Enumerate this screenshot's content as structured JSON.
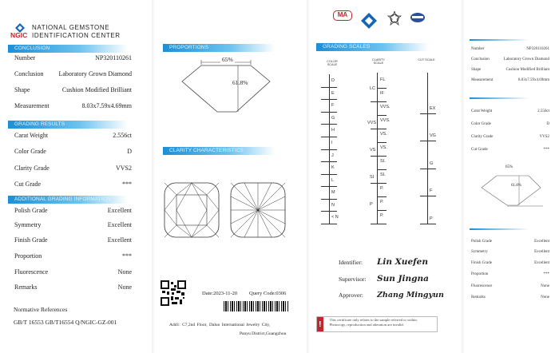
{
  "header": {
    "org_line1": "NATIONAL GEMSTONE",
    "org_line2": "IDENTIFICATION CENTER",
    "logo_text": "NGIC",
    "brand_color": "#1c8fd6",
    "logo_red": "#c0262d"
  },
  "conclusion": {
    "title": "CONCLUSION",
    "rows": [
      {
        "label": "Number",
        "value": "NP320110261"
      },
      {
        "label": "Conclusion",
        "value": "Laboratory Grown Diamond"
      },
      {
        "label": "Shape",
        "value": "Cushion Modified Brilliant"
      },
      {
        "label": "Measurement",
        "value": "8.03x7.59x4.69mm"
      }
    ]
  },
  "grading": {
    "title": "GRADING RESULTS",
    "rows": [
      {
        "label": "Carat Weight",
        "value": "2.556ct"
      },
      {
        "label": "Color Grade",
        "value": "D"
      },
      {
        "label": "Clarity Grade",
        "value": "VVS2"
      },
      {
        "label": "Cut Grade",
        "value": "***"
      }
    ]
  },
  "additional": {
    "title": "ADDITIONAL GRADING INFORMATION",
    "rows": [
      {
        "label": "Polish Grade",
        "value": "Excellent"
      },
      {
        "label": "Symmetry",
        "value": "Excellent"
      },
      {
        "label": "Finish Grade",
        "value": "Excellent"
      },
      {
        "label": "Proportion",
        "value": "***"
      },
      {
        "label": "Fluorescence",
        "value": "None"
      },
      {
        "label": "Remarks",
        "value": "None"
      }
    ]
  },
  "references": {
    "title": "Normative References",
    "value": "GB/T 16553  GB/T16554  Q/NGIC-GZ-001"
  },
  "proportions": {
    "title": "PROPORTIONS",
    "table": "65%",
    "depth": "61.8%"
  },
  "clarity_characteristics": {
    "title": "CLARITY CHARACTERISTICS"
  },
  "footer": {
    "date": "Date:2023-11-20",
    "query_code": "Query Code:0306",
    "address_line1": "Add1:  C7,2nd Floor,  Daluo International Jewelry City,",
    "address_line2": "Panyu District,Guangzhou"
  },
  "scales": {
    "title": "GRADING SCALES",
    "color_title": "COLOR SCALE",
    "clarity_title": "CLARITY SCALE",
    "cut_title": "CUT SCALE",
    "color": [
      "D",
      "E",
      "F",
      "G",
      "H",
      "I",
      "J",
      "K",
      "L",
      "M",
      "N",
      "< N"
    ],
    "clarity": [
      "FL",
      "IF",
      "VVS.",
      "VVS.",
      "VS.",
      "VS.",
      "SI.",
      "SI.",
      "P.",
      "P.",
      "P."
    ],
    "clarity_groups": [
      "LC",
      "VVS",
      "VS",
      "SI",
      "P"
    ],
    "cut": [
      "EX",
      "VG",
      "G",
      "F",
      "P"
    ]
  },
  "signatures": [
    {
      "role": "Identifier:",
      "name": "Lin Xuefen"
    },
    {
      "role": "Supervisor:",
      "name": "Sun Jingna"
    },
    {
      "role": "Approver:",
      "name": "Zhang Mingyun"
    }
  ],
  "warning": {
    "icon": "exclamation-icon",
    "text": "This certificate only relates to the sample referred to within. Photocopy, reproduction and alteration are invalid.",
    "color": "#c0262d"
  },
  "accreditation_logos": {
    "cma": "MA"
  }
}
